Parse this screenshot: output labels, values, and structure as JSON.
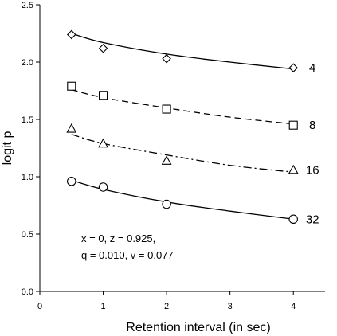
{
  "chart_data": {
    "type": "line",
    "xlabel": "Retention interval (in sec)",
    "ylabel": "logit p",
    "xlim": [
      0,
      4.5
    ],
    "ylim": [
      0.0,
      2.5
    ],
    "xticks": [
      0,
      1,
      2,
      3,
      4
    ],
    "yticks": [
      0.0,
      0.5,
      1.0,
      1.5,
      2.0,
      2.5
    ],
    "xtick_labels": [
      "0",
      "1",
      "2",
      "3",
      "4"
    ],
    "ytick_labels": [
      "0.0",
      "0.5",
      "1.0",
      "1.5",
      "2.0",
      "2.5"
    ],
    "grid": false,
    "series": [
      {
        "name": "4",
        "marker": "diamond",
        "line_style": "solid",
        "points": [
          [
            0.5,
            2.24
          ],
          [
            1,
            2.12
          ],
          [
            2,
            2.03
          ],
          [
            4,
            1.95
          ]
        ],
        "fit": [
          [
            0.5,
            2.25
          ],
          [
            1,
            2.17
          ],
          [
            2,
            2.07
          ],
          [
            3,
            2.0
          ],
          [
            4,
            1.94
          ]
        ]
      },
      {
        "name": "8",
        "marker": "square",
        "line_style": "dashed",
        "points": [
          [
            0.5,
            1.79
          ],
          [
            1,
            1.71
          ],
          [
            2,
            1.59
          ],
          [
            4,
            1.45
          ]
        ],
        "fit": [
          [
            0.5,
            1.76
          ],
          [
            1,
            1.69
          ],
          [
            2,
            1.6
          ],
          [
            3,
            1.52
          ],
          [
            4,
            1.46
          ]
        ]
      },
      {
        "name": "16",
        "marker": "triangle",
        "line_style": "dashdot",
        "points": [
          [
            0.5,
            1.42
          ],
          [
            1,
            1.29
          ],
          [
            2,
            1.14
          ],
          [
            4,
            1.06
          ]
        ],
        "fit": [
          [
            0.5,
            1.37
          ],
          [
            1,
            1.29
          ],
          [
            2,
            1.19
          ],
          [
            3,
            1.1
          ],
          [
            4,
            1.04
          ]
        ]
      },
      {
        "name": "32",
        "marker": "circle",
        "line_style": "solid",
        "points": [
          [
            0.5,
            0.96
          ],
          [
            1,
            0.91
          ],
          [
            2,
            0.76
          ],
          [
            4,
            0.63
          ]
        ],
        "fit": [
          [
            0.5,
            0.97
          ],
          [
            1,
            0.89
          ],
          [
            2,
            0.78
          ],
          [
            3,
            0.7
          ],
          [
            4,
            0.63
          ]
        ]
      }
    ],
    "annotation": [
      "x = 0, z = 0.925,",
      "q = 0.010, v = 0.077"
    ]
  }
}
